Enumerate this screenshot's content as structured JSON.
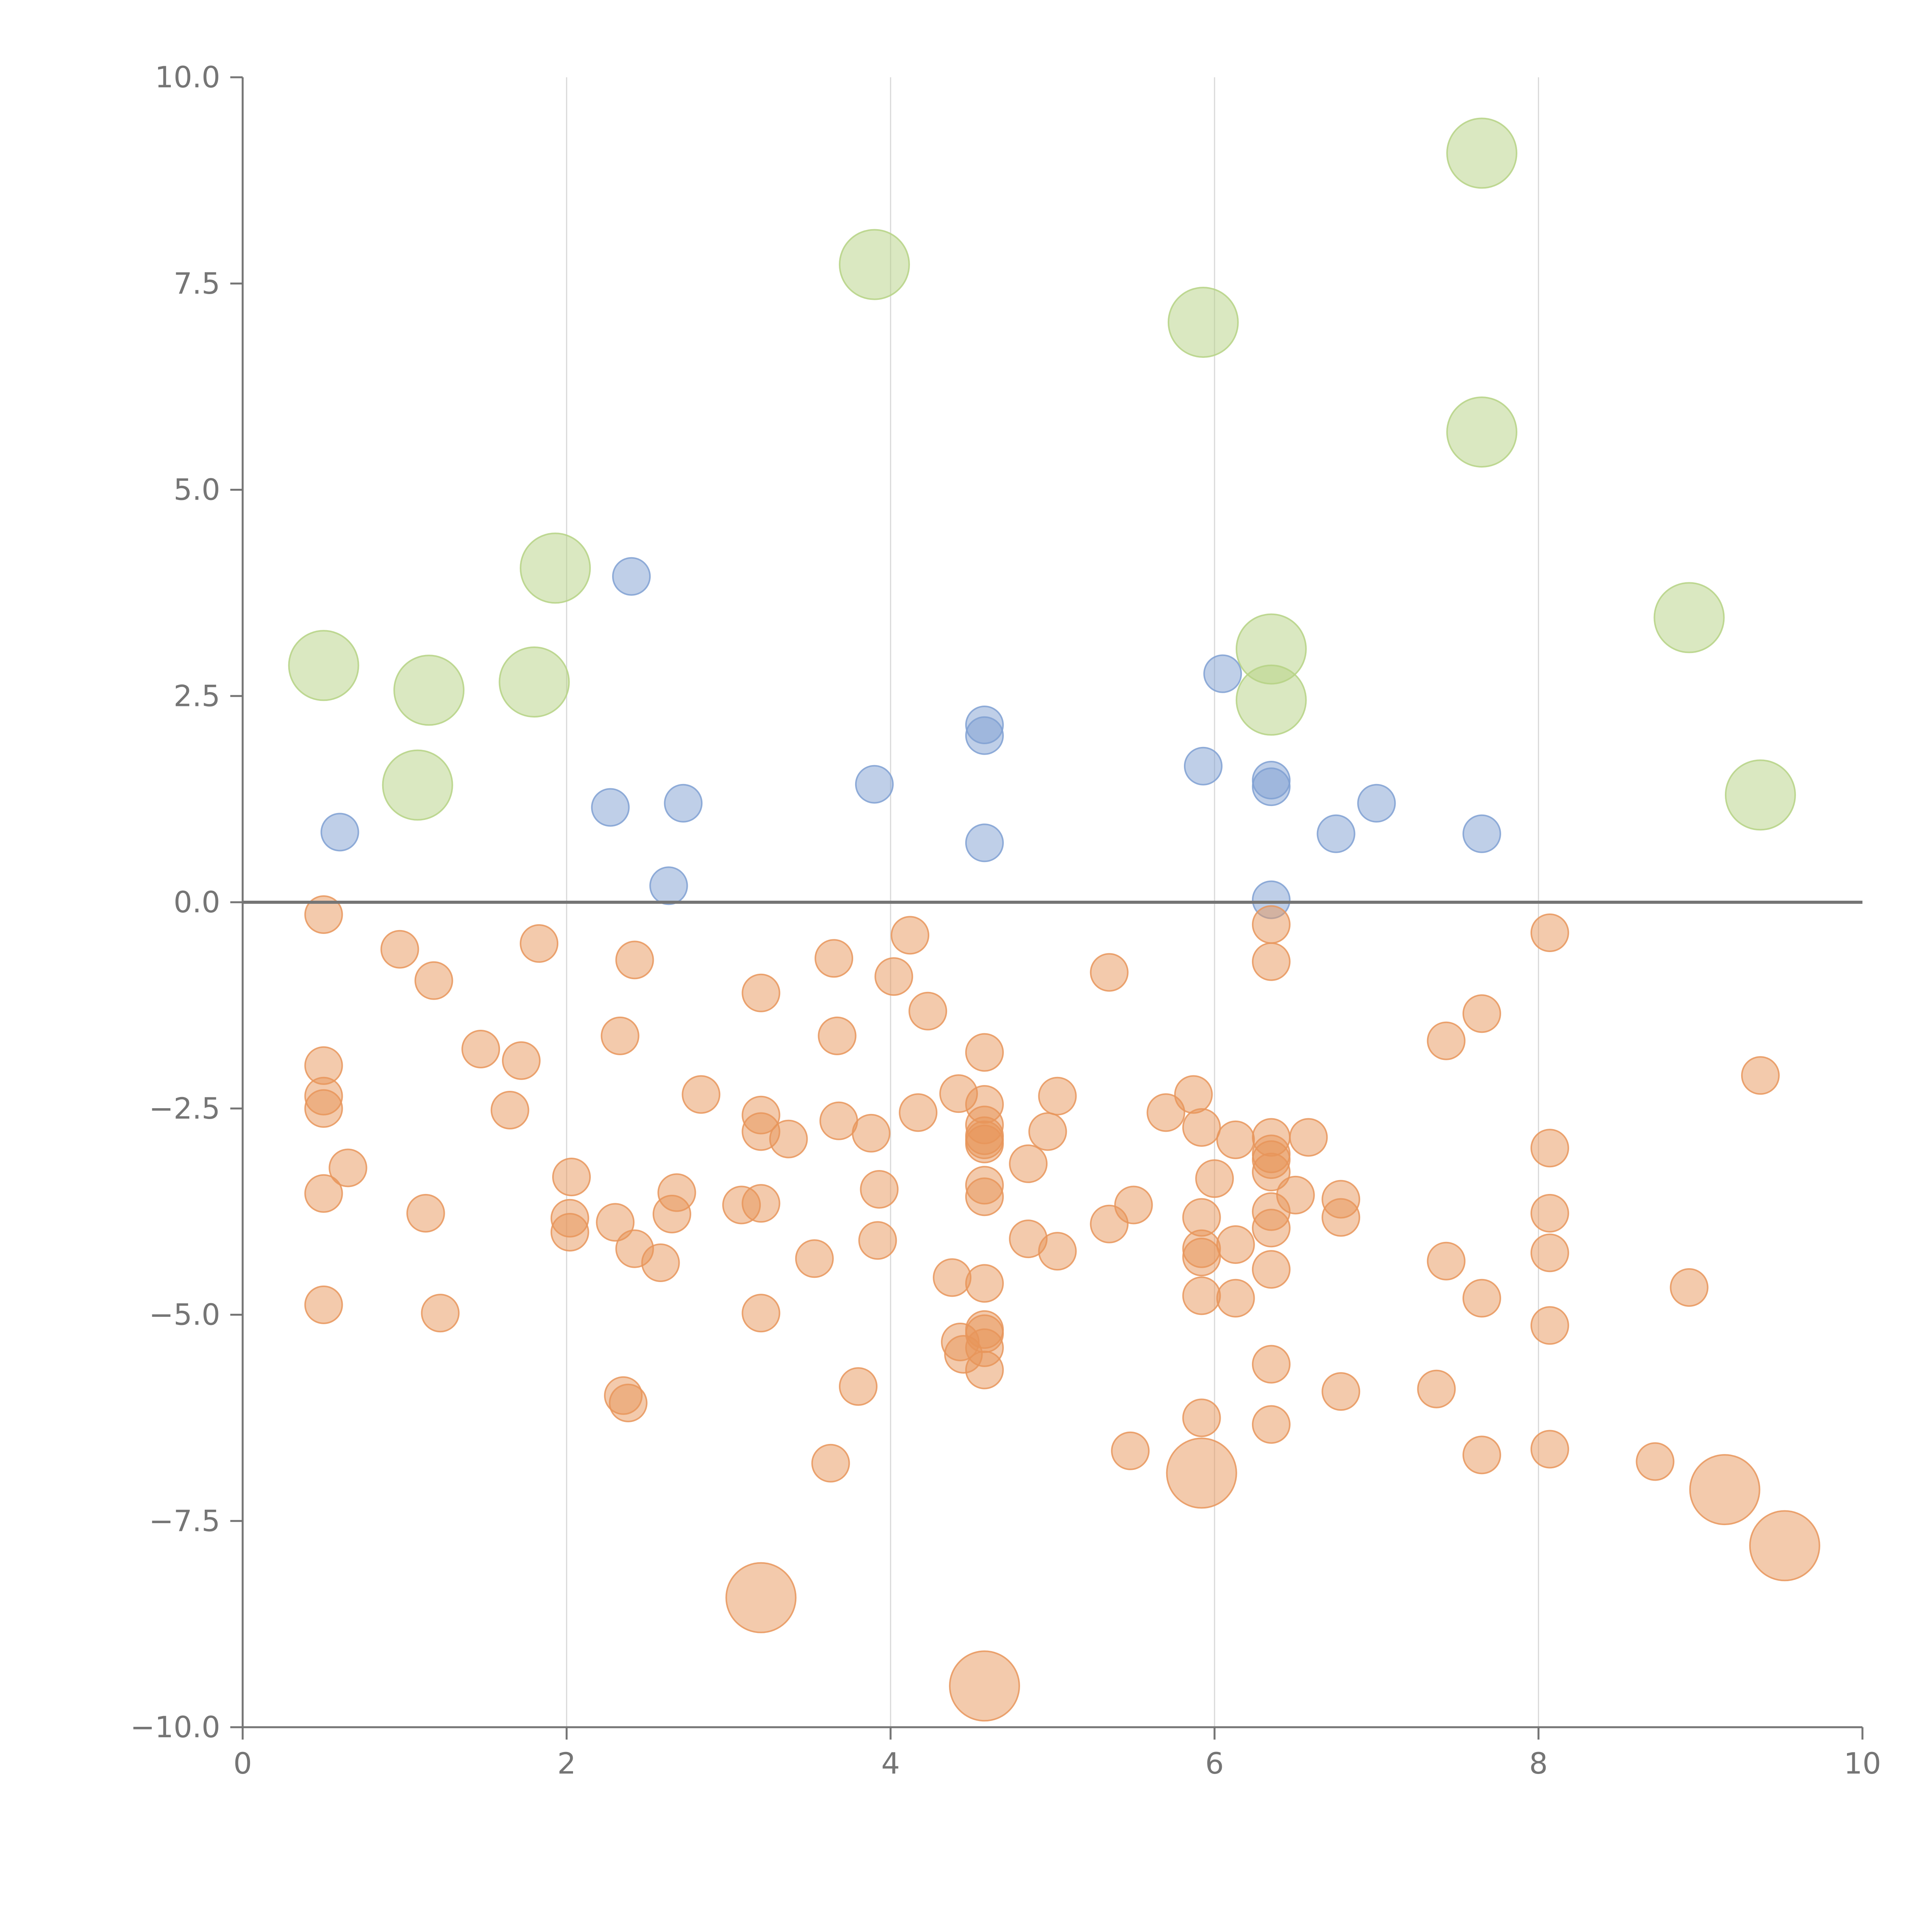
{
  "chart_data": {
    "type": "scatter",
    "title": "",
    "xlabel": "",
    "ylabel": "",
    "xlim": [
      0,
      10
    ],
    "ylim": [
      -10,
      10
    ],
    "x_ticks": [
      {
        "value": 0,
        "label": "0"
      },
      {
        "value": 2,
        "label": "2"
      },
      {
        "value": 4,
        "label": "4"
      },
      {
        "value": 6,
        "label": "6"
      },
      {
        "value": 8,
        "label": "8"
      },
      {
        "value": 10,
        "label": "10"
      }
    ],
    "y_ticks": [
      {
        "value": 10,
        "label": "10.0"
      },
      {
        "value": 7.5,
        "label": "7.5"
      },
      {
        "value": 5,
        "label": "5.0"
      },
      {
        "value": 2.5,
        "label": "2.5"
      },
      {
        "value": 0,
        "label": "0.0"
      },
      {
        "value": -2.5,
        "label": "−2.5"
      },
      {
        "value": -5,
        "label": "−5.0"
      },
      {
        "value": -7.5,
        "label": "−7.5"
      },
      {
        "value": -10,
        "label": "−10.0"
      }
    ],
    "vertical_gridlines": [
      2,
      4,
      6,
      8
    ],
    "zero_line": 0,
    "colors": {
      "negative": "#e8955a",
      "positive_small": "#7fa0d2",
      "positive_large": "#b5d284",
      "axis": "#757575",
      "grid": "#d9d9d9"
    },
    "series": [
      {
        "name": "positive-large",
        "color_key": "positive_large",
        "size": "large",
        "points": [
          [
            0.5,
            2.87
          ],
          [
            1.15,
            2.57
          ],
          [
            1.08,
            1.42
          ],
          [
            1.8,
            2.67
          ],
          [
            1.93,
            4.05
          ],
          [
            3.9,
            7.73
          ],
          [
            5.93,
            7.03
          ],
          [
            7.65,
            9.08
          ],
          [
            7.65,
            5.7
          ],
          [
            6.35,
            3.07
          ],
          [
            6.35,
            2.45
          ],
          [
            8.93,
            3.45
          ],
          [
            9.37,
            1.3
          ]
        ]
      },
      {
        "name": "positive-small",
        "color_key": "positive_small",
        "size": "small",
        "points": [
          [
            0.6,
            0.85
          ],
          [
            2.27,
            1.15
          ],
          [
            2.4,
            3.95
          ],
          [
            2.63,
            0.2
          ],
          [
            2.72,
            1.2
          ],
          [
            3.9,
            1.43
          ],
          [
            4.58,
            2.15
          ],
          [
            4.58,
            2.02
          ],
          [
            4.58,
            0.72
          ],
          [
            5.93,
            1.65
          ],
          [
            6.05,
            2.77
          ],
          [
            6.35,
            1.48
          ],
          [
            6.35,
            1.4
          ],
          [
            6.35,
            0.03
          ],
          [
            6.75,
            0.83
          ],
          [
            7.0,
            1.2
          ],
          [
            7.65,
            0.83
          ]
        ]
      },
      {
        "name": "negative-small",
        "color_key": "negative",
        "size": "small",
        "points": [
          [
            0.5,
            -0.15
          ],
          [
            0.5,
            -1.98
          ],
          [
            0.5,
            -2.35
          ],
          [
            0.5,
            -2.5
          ],
          [
            0.5,
            -3.53
          ],
          [
            0.5,
            -4.88
          ],
          [
            0.65,
            -3.22
          ],
          [
            0.97,
            -0.57
          ],
          [
            1.13,
            -3.77
          ],
          [
            1.18,
            -0.95
          ],
          [
            1.22,
            -4.98
          ],
          [
            1.47,
            -1.78
          ],
          [
            1.65,
            -2.52
          ],
          [
            1.72,
            -1.92
          ],
          [
            1.83,
            -0.5
          ],
          [
            2.02,
            -3.83
          ],
          [
            2.02,
            -4.0
          ],
          [
            2.03,
            -3.33
          ],
          [
            2.3,
            -3.88
          ],
          [
            2.33,
            -1.62
          ],
          [
            2.35,
            -5.98
          ],
          [
            2.38,
            -6.07
          ],
          [
            2.42,
            -0.7
          ],
          [
            2.42,
            -4.2
          ],
          [
            2.58,
            -4.37
          ],
          [
            2.65,
            -3.78
          ],
          [
            2.68,
            -3.52
          ],
          [
            2.83,
            -2.33
          ],
          [
            3.08,
            -3.67
          ],
          [
            3.2,
            -1.1
          ],
          [
            3.2,
            -2.58
          ],
          [
            3.2,
            -2.78
          ],
          [
            3.2,
            -3.65
          ],
          [
            3.2,
            -4.98
          ],
          [
            3.37,
            -2.87
          ],
          [
            3.53,
            -4.32
          ],
          [
            3.63,
            -6.8
          ],
          [
            3.65,
            -0.68
          ],
          [
            3.67,
            -1.62
          ],
          [
            3.68,
            -2.65
          ],
          [
            3.8,
            -5.87
          ],
          [
            3.88,
            -2.8
          ],
          [
            3.92,
            -4.1
          ],
          [
            3.93,
            -3.48
          ],
          [
            4.02,
            -0.9
          ],
          [
            4.12,
            -0.4
          ],
          [
            4.17,
            -2.55
          ],
          [
            4.23,
            -1.32
          ],
          [
            4.38,
            -4.55
          ],
          [
            4.42,
            -2.32
          ],
          [
            4.43,
            -5.33
          ],
          [
            4.45,
            -5.48
          ],
          [
            4.58,
            -1.82
          ],
          [
            4.58,
            -2.45
          ],
          [
            4.58,
            -2.7
          ],
          [
            4.58,
            -2.83
          ],
          [
            4.58,
            -2.88
          ],
          [
            4.58,
            -2.93
          ],
          [
            4.58,
            -3.43
          ],
          [
            4.58,
            -3.57
          ],
          [
            4.58,
            -4.62
          ],
          [
            4.58,
            -5.18
          ],
          [
            4.58,
            -5.23
          ],
          [
            4.58,
            -5.4
          ],
          [
            4.58,
            -5.67
          ],
          [
            4.85,
            -3.17
          ],
          [
            4.85,
            -4.08
          ],
          [
            4.97,
            -2.78
          ],
          [
            5.03,
            -2.35
          ],
          [
            5.03,
            -4.23
          ],
          [
            5.35,
            -0.85
          ],
          [
            5.35,
            -3.9
          ],
          [
            5.48,
            -6.65
          ],
          [
            5.5,
            -3.67
          ],
          [
            5.7,
            -2.55
          ],
          [
            5.87,
            -2.33
          ],
          [
            5.92,
            -2.73
          ],
          [
            5.92,
            -3.82
          ],
          [
            5.92,
            -4.2
          ],
          [
            5.92,
            -4.3
          ],
          [
            5.92,
            -4.77
          ],
          [
            5.92,
            -6.25
          ],
          [
            6.0,
            -3.35
          ],
          [
            6.13,
            -2.88
          ],
          [
            6.13,
            -4.15
          ],
          [
            6.13,
            -4.8
          ],
          [
            6.35,
            -0.27
          ],
          [
            6.35,
            -0.72
          ],
          [
            6.35,
            -2.85
          ],
          [
            6.35,
            -3.05
          ],
          [
            6.35,
            -3.12
          ],
          [
            6.35,
            -3.27
          ],
          [
            6.35,
            -3.75
          ],
          [
            6.35,
            -3.95
          ],
          [
            6.35,
            -4.45
          ],
          [
            6.35,
            -5.6
          ],
          [
            6.35,
            -6.33
          ],
          [
            6.5,
            -3.55
          ],
          [
            6.58,
            -2.85
          ],
          [
            6.78,
            -3.6
          ],
          [
            6.78,
            -3.82
          ],
          [
            6.78,
            -5.93
          ],
          [
            7.37,
            -5.9
          ],
          [
            7.43,
            -4.35
          ],
          [
            7.43,
            -1.68
          ],
          [
            7.65,
            -1.35
          ],
          [
            7.65,
            -4.8
          ],
          [
            7.65,
            -6.7
          ],
          [
            8.07,
            -0.37
          ],
          [
            8.07,
            -2.98
          ],
          [
            8.07,
            -3.77
          ],
          [
            8.07,
            -4.25
          ],
          [
            8.07,
            -5.13
          ],
          [
            8.07,
            -6.63
          ],
          [
            8.72,
            -6.78
          ],
          [
            8.93,
            -4.67
          ],
          [
            9.37,
            -2.1
          ]
        ]
      },
      {
        "name": "negative-large",
        "color_key": "negative",
        "size": "large",
        "points": [
          [
            3.2,
            -8.43
          ],
          [
            4.58,
            -9.5
          ],
          [
            5.92,
            -6.92
          ],
          [
            9.15,
            -7.12
          ],
          [
            9.52,
            -7.8
          ]
        ]
      }
    ]
  }
}
